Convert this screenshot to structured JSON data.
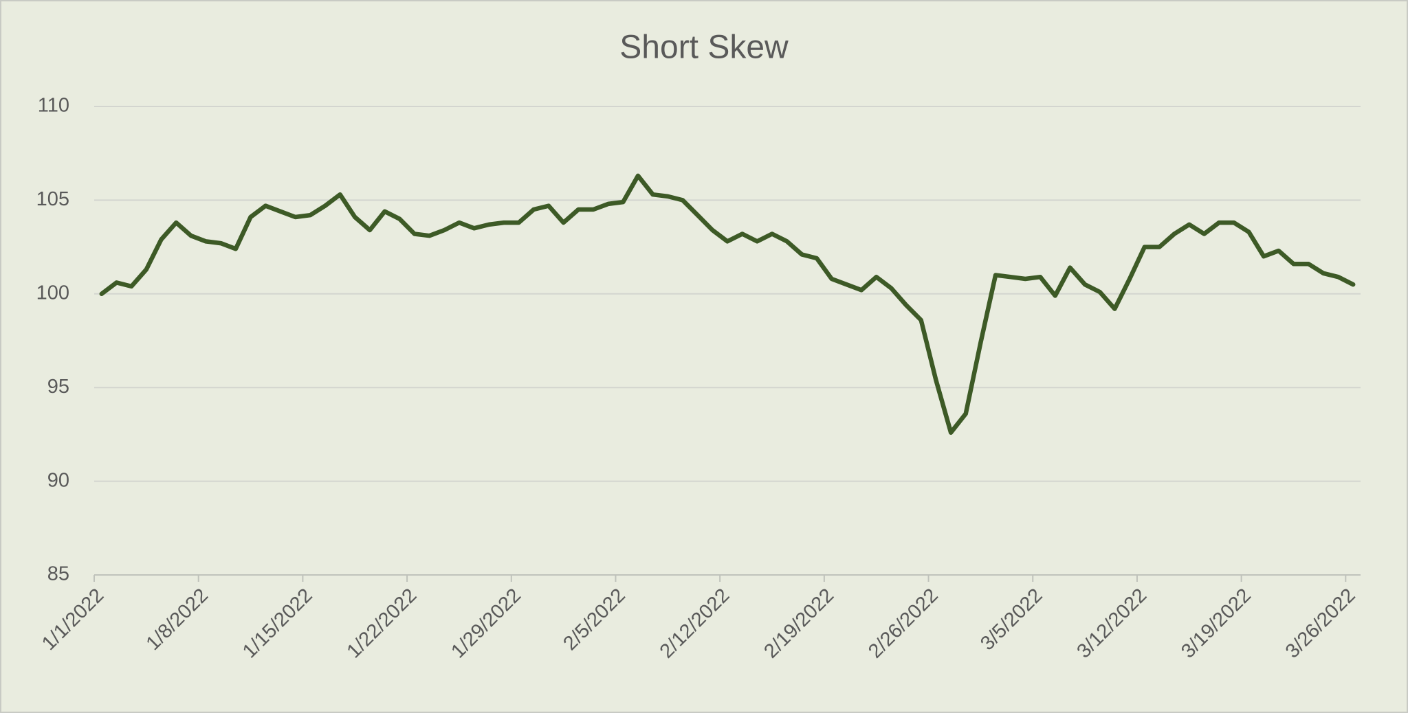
{
  "chart_data": {
    "type": "line",
    "title": "Short Skew",
    "categories": [
      "1/1/2022",
      null,
      null,
      null,
      null,
      null,
      null,
      "1/8/2022",
      null,
      null,
      null,
      null,
      null,
      null,
      "1/15/2022",
      null,
      null,
      null,
      null,
      null,
      null,
      "1/22/2022",
      null,
      null,
      null,
      null,
      null,
      null,
      "1/29/2022",
      null,
      null,
      null,
      null,
      null,
      null,
      "2/5/2022",
      null,
      null,
      null,
      null,
      null,
      null,
      "2/12/2022",
      null,
      null,
      null,
      null,
      null,
      null,
      "2/19/2022",
      null,
      null,
      null,
      null,
      null,
      null,
      "2/26/2022",
      null,
      null,
      null,
      null,
      null,
      null,
      "3/5/2022",
      null,
      null,
      null,
      null,
      null,
      null,
      "3/12/2022",
      null,
      null,
      null,
      null,
      null,
      null,
      "3/19/2022",
      null,
      null,
      null,
      null,
      null,
      null,
      "3/26/2022"
    ],
    "series": [
      {
        "name": "Short Skew",
        "color": "#3d5a26",
        "values": [
          100.0,
          100.6,
          100.4,
          101.3,
          102.9,
          103.8,
          103.1,
          102.8,
          102.7,
          102.4,
          104.1,
          104.7,
          104.4,
          104.1,
          104.2,
          104.7,
          105.3,
          104.1,
          103.4,
          104.4,
          104.0,
          103.2,
          103.1,
          103.4,
          103.8,
          103.5,
          103.7,
          103.8,
          103.8,
          104.5,
          104.7,
          103.8,
          104.5,
          104.5,
          104.8,
          104.9,
          106.3,
          105.3,
          105.2,
          105.0,
          104.2,
          103.4,
          102.8,
          103.2,
          102.8,
          103.2,
          102.8,
          102.1,
          101.9,
          100.8,
          100.5,
          100.2,
          100.9,
          100.3,
          99.4,
          98.6,
          95.4,
          92.6,
          93.6,
          97.4,
          101.0,
          100.9,
          100.8,
          100.9,
          99.9,
          101.4,
          100.5,
          100.1,
          99.2,
          100.8,
          102.5,
          102.5,
          103.2,
          103.7,
          103.2,
          103.8,
          103.8,
          103.3,
          102.0,
          102.3,
          101.6,
          101.6,
          101.1,
          100.9,
          100.5
        ]
      }
    ],
    "ylim": [
      85,
      110
    ],
    "yticks": [
      85,
      90,
      95,
      100,
      105,
      110
    ],
    "grid": true
  }
}
